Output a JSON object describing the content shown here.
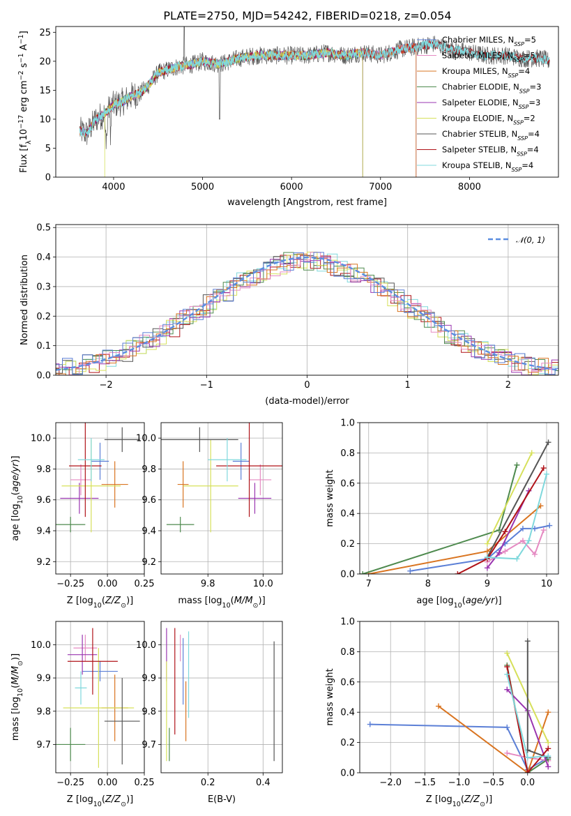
{
  "title": "PLATE=2750, MJD=54242, FIBERID=0218, z=0.054",
  "colors": {
    "Chabrier MILES": "#5b7fd6",
    "Salpeter MILES": "#e58ac2",
    "Kroupa MILES": "#d97420",
    "Chabrier ELODIE": "#4e8a4e",
    "Salpeter ELODIE": "#9a35b0",
    "Kroupa ELODIE": "#d6e05a",
    "Chabrier STELIB": "#555555",
    "Salpeter STELIB": "#b01218",
    "Kroupa STELIB": "#7fd8dc"
  },
  "chart_data": [
    {
      "id": "spectrum",
      "type": "line",
      "xlabel": "wavelength [Angstrom, rest frame]",
      "ylabel": "Flux [f_λ10^-17 erg cm^-2 s^-1 A^-1]",
      "xlim": [
        3350,
        9000
      ],
      "ylim": [
        0,
        26
      ],
      "xticks": [
        4000,
        5000,
        6000,
        7000,
        8000
      ],
      "yticks": [
        0,
        5,
        10,
        15,
        20,
        25
      ],
      "legend_position": "right",
      "legend": [
        {
          "name": "Chabrier MILES",
          "label": "Chabrier MILES, N",
          "sub": "SSP",
          "suffix": "=5"
        },
        {
          "name": "Salpeter MILES",
          "label": "Salpeter MILES, N",
          "sub": "SSP",
          "suffix": "=5"
        },
        {
          "name": "Kroupa MILES",
          "label": "Kroupa MILES, N",
          "sub": "SSP",
          "suffix": "=4"
        },
        {
          "name": "Chabrier ELODIE",
          "label": "Chabrier ELODIE, N",
          "sub": "SSP",
          "suffix": "=3"
        },
        {
          "name": "Salpeter ELODIE",
          "label": "Salpeter ELODIE, N",
          "sub": "SSP",
          "suffix": "=3"
        },
        {
          "name": "Kroupa ELODIE",
          "label": "Kroupa ELODIE, N",
          "sub": "SSP",
          "suffix": "=2"
        },
        {
          "name": "Chabrier STELIB",
          "label": "Chabrier STELIB, N",
          "sub": "SSP",
          "suffix": "=4"
        },
        {
          "name": "Salpeter STELIB",
          "label": "Salpeter STELIB, N",
          "sub": "SSP",
          "suffix": "=4"
        },
        {
          "name": "Kroupa STELIB",
          "label": "Kroupa STELIB, N",
          "sub": "SSP",
          "suffix": "=4"
        }
      ],
      "spectrum_keypoints": [
        [
          3620,
          8
        ],
        [
          3700,
          7.5
        ],
        [
          3800,
          10
        ],
        [
          3900,
          11
        ],
        [
          4000,
          12.5
        ],
        [
          4100,
          13
        ],
        [
          4200,
          14
        ],
        [
          4300,
          14.5
        ],
        [
          4400,
          16
        ],
        [
          4500,
          18
        ],
        [
          4700,
          19
        ],
        [
          4900,
          19.5
        ],
        [
          5000,
          20
        ],
        [
          5200,
          19.5
        ],
        [
          5400,
          20.5
        ],
        [
          5600,
          21
        ],
        [
          5800,
          21
        ],
        [
          6000,
          21
        ],
        [
          6200,
          21
        ],
        [
          6400,
          21.5
        ],
        [
          6600,
          21
        ],
        [
          6800,
          21.5
        ],
        [
          7000,
          21
        ],
        [
          7200,
          22
        ],
        [
          7400,
          22.5
        ],
        [
          7600,
          23
        ],
        [
          7800,
          22
        ],
        [
          8000,
          21.5
        ],
        [
          8200,
          21
        ],
        [
          8400,
          21
        ],
        [
          8600,
          20.5
        ],
        [
          8800,
          20.5
        ],
        [
          8900,
          20
        ]
      ]
    },
    {
      "id": "residuals",
      "type": "histogram",
      "xlabel": "(data-model)/error",
      "ylabel": "Normed distribution",
      "xlim": [
        -2.5,
        2.5
      ],
      "ylim": [
        0,
        0.51
      ],
      "xticks": [
        -2,
        -1,
        0,
        1,
        2
      ],
      "yticks": [
        0.0,
        0.1,
        0.2,
        0.3,
        0.4,
        0.5
      ],
      "grid": true,
      "legend_position": "top-right",
      "reference_curve": {
        "name": "N(0,1)",
        "label": "𝒩(0, 1)",
        "mean": 0,
        "sigma": 1
      }
    },
    {
      "id": "age_vs_Z",
      "type": "errorbar",
      "xlabel": "Z [log10(Z/Z⊙)]",
      "ylabel": "age [log10(age/yr)]",
      "xlim": [
        -0.35,
        0.25
      ],
      "ylim": [
        9.12,
        10.1
      ],
      "xticks": [
        -0.25,
        0.0,
        0.25
      ],
      "yticks": [
        9.2,
        9.4,
        9.6,
        9.8,
        10.0
      ],
      "grid": true,
      "points": [
        {
          "series": "Chabrier MILES",
          "x": -0.05,
          "xerr": 0.06,
          "y": 9.85,
          "yerr": 0.12
        },
        {
          "series": "Salpeter MILES",
          "x": -0.18,
          "xerr": 0.07,
          "y": 9.73,
          "yerr": 0.1
        },
        {
          "series": "Kroupa MILES",
          "x": 0.05,
          "xerr": 0.09,
          "y": 9.7,
          "yerr": 0.15
        },
        {
          "series": "Chabrier ELODIE",
          "x": -0.25,
          "xerr": 0.1,
          "y": 9.44,
          "yerr": 0.05
        },
        {
          "series": "Salpeter ELODIE",
          "x": -0.19,
          "xerr": 0.13,
          "y": 9.61,
          "yerr": 0.1
        },
        {
          "series": "Kroupa ELODIE",
          "x": -0.11,
          "xerr": 0.2,
          "y": 9.69,
          "yerr": 0.3
        },
        {
          "series": "Chabrier STELIB",
          "x": 0.1,
          "xerr": 0.12,
          "y": 9.99,
          "yerr": 0.08
        },
        {
          "series": "Salpeter STELIB",
          "x": -0.15,
          "xerr": 0.11,
          "y": 9.82,
          "yerr": 0.33
        },
        {
          "series": "Kroupa STELIB",
          "x": -0.11,
          "xerr": 0.09,
          "y": 9.86,
          "yerr": 0.14
        }
      ]
    },
    {
      "id": "age_vs_mass",
      "type": "errorbar",
      "xlabel": "mass [log10(M/M⊙)]",
      "ylabel": "",
      "xlim": [
        9.63,
        10.07
      ],
      "ylim": [
        9.12,
        10.1
      ],
      "xticks": [
        9.8,
        10.0
      ],
      "yticks": [
        9.2,
        9.4,
        9.6,
        9.8,
        10.0
      ],
      "grid": true,
      "points": [
        {
          "series": "Chabrier MILES",
          "x": 9.92,
          "xerr": 0.03,
          "y": 9.85,
          "yerr": 0.12
        },
        {
          "series": "Salpeter MILES",
          "x": 9.99,
          "xerr": 0.04,
          "y": 9.73,
          "yerr": 0.1
        },
        {
          "series": "Kroupa MILES",
          "x": 9.71,
          "xerr": 0.02,
          "y": 9.7,
          "yerr": 0.15
        },
        {
          "series": "Chabrier ELODIE",
          "x": 9.7,
          "xerr": 0.05,
          "y": 9.44,
          "yerr": 0.05
        },
        {
          "series": "Salpeter ELODIE",
          "x": 9.97,
          "xerr": 0.06,
          "y": 9.61,
          "yerr": 0.1
        },
        {
          "series": "Kroupa ELODIE",
          "x": 9.81,
          "xerr": 0.1,
          "y": 9.69,
          "yerr": 0.3
        },
        {
          "series": "Chabrier STELIB",
          "x": 9.77,
          "xerr": 0.14,
          "y": 9.99,
          "yerr": 0.08
        },
        {
          "series": "Salpeter STELIB",
          "x": 9.95,
          "xerr": 0.12,
          "y": 9.82,
          "yerr": 0.33
        },
        {
          "series": "Kroupa STELIB",
          "x": 9.87,
          "xerr": 0.07,
          "y": 9.86,
          "yerr": 0.14
        }
      ]
    },
    {
      "id": "weight_vs_age",
      "type": "line",
      "xlabel": "age [log10(age/yr)]",
      "ylabel": "mass weight",
      "xlim": [
        6.85,
        10.2
      ],
      "ylim": [
        0,
        1.0
      ],
      "xticks": [
        7,
        8,
        9,
        10
      ],
      "yticks": [
        0.0,
        0.2,
        0.4,
        0.6,
        0.8,
        1.0
      ],
      "grid": true,
      "series": [
        {
          "name": "Chabrier MILES",
          "points": [
            [
              7.7,
              0.02
            ],
            [
              9.0,
              0.1
            ],
            [
              9.3,
              0.2
            ],
            [
              9.6,
              0.3
            ],
            [
              9.8,
              0.3
            ],
            [
              10.05,
              0.32
            ]
          ]
        },
        {
          "name": "Salpeter MILES",
          "points": [
            [
              9.0,
              0.08
            ],
            [
              9.3,
              0.15
            ],
            [
              9.6,
              0.22
            ],
            [
              9.8,
              0.13
            ],
            [
              9.95,
              0.29
            ]
          ]
        },
        {
          "name": "Kroupa MILES",
          "points": [
            [
              7.0,
              0.0
            ],
            [
              9.0,
              0.15
            ],
            [
              9.9,
              0.45
            ]
          ]
        },
        {
          "name": "Chabrier ELODIE",
          "points": [
            [
              6.9,
              0.0
            ],
            [
              9.2,
              0.29
            ],
            [
              9.5,
              0.72
            ]
          ]
        },
        {
          "name": "Salpeter ELODIE",
          "points": [
            [
              9.0,
              0.04
            ],
            [
              9.2,
              0.14
            ],
            [
              9.7,
              0.55
            ]
          ]
        },
        {
          "name": "Kroupa ELODIE",
          "points": [
            [
              9.0,
              0.2
            ],
            [
              9.75,
              0.8
            ]
          ]
        },
        {
          "name": "Chabrier STELIB",
          "points": [
            [
              9.0,
              0.11
            ],
            [
              10.03,
              0.87
            ]
          ]
        },
        {
          "name": "Salpeter STELIB",
          "points": [
            [
              8.5,
              0.0
            ],
            [
              9.0,
              0.1
            ],
            [
              9.3,
              0.28
            ],
            [
              9.95,
              0.7
            ]
          ]
        },
        {
          "name": "Kroupa STELIB",
          "points": [
            [
              9.0,
              0.11
            ],
            [
              9.5,
              0.1
            ],
            [
              9.7,
              0.22
            ],
            [
              10.0,
              0.66
            ]
          ]
        }
      ]
    },
    {
      "id": "mass_vs_Z",
      "type": "errorbar",
      "xlabel": "Z [log10(Z/Z⊙)]",
      "ylabel": "mass [log10(M/M⊙)]",
      "xlim": [
        -0.35,
        0.25
      ],
      "ylim": [
        9.615,
        10.07
      ],
      "xticks": [
        -0.25,
        0.0,
        0.25
      ],
      "yticks": [
        9.7,
        9.8,
        9.9,
        10.0
      ],
      "grid": true,
      "points": [
        {
          "series": "Chabrier MILES",
          "x": -0.05,
          "xerr": 0.12,
          "y": 9.92,
          "yerr": 0.03
        },
        {
          "series": "Salpeter MILES",
          "x": -0.15,
          "xerr": 0.08,
          "y": 9.99,
          "yerr": 0.04
        },
        {
          "series": "Kroupa MILES",
          "x": 0.05,
          "xerr": 0.09,
          "y": 9.81,
          "yerr": 0.1
        },
        {
          "series": "Chabrier ELODIE",
          "x": -0.25,
          "xerr": 0.1,
          "y": 9.7,
          "yerr": 0.05
        },
        {
          "series": "Salpeter ELODIE",
          "x": -0.17,
          "xerr": 0.1,
          "y": 9.97,
          "yerr": 0.06
        },
        {
          "series": "Kroupa ELODIE",
          "x": -0.06,
          "xerr": 0.24,
          "y": 9.81,
          "yerr": 0.18
        },
        {
          "series": "Chabrier STELIB",
          "x": 0.1,
          "xerr": 0.12,
          "y": 9.77,
          "yerr": 0.13
        },
        {
          "series": "Salpeter STELIB",
          "x": -0.1,
          "xerr": 0.17,
          "y": 9.95,
          "yerr": 0.1
        },
        {
          "series": "Kroupa STELIB",
          "x": -0.18,
          "xerr": 0.04,
          "y": 9.87,
          "yerr": 0.05
        }
      ]
    },
    {
      "id": "mass_vs_ebv",
      "type": "errorbar",
      "xlabel": "E(B-V)",
      "ylabel": "",
      "xlim": [
        0.03,
        0.47
      ],
      "ylim": [
        9.615,
        10.07
      ],
      "xticks": [
        0.2,
        0.4
      ],
      "yticks": [
        9.7,
        9.8,
        9.9,
        10.0
      ],
      "grid": true,
      "points": [
        {
          "series": "Chabrier MILES",
          "x": 0.11,
          "xerr": 0.0,
          "y": 9.92,
          "yerr": 0.1
        },
        {
          "series": "Salpeter MILES",
          "x": 0.1,
          "xerr": 0.0,
          "y": 9.99,
          "yerr": 0.04
        },
        {
          "series": "Kroupa MILES",
          "x": 0.12,
          "xerr": 0.0,
          "y": 9.8,
          "yerr": 0.09
        },
        {
          "series": "Chabrier ELODIE",
          "x": 0.06,
          "xerr": 0.0,
          "y": 9.7,
          "yerr": 0.05
        },
        {
          "series": "Salpeter ELODIE",
          "x": 0.05,
          "xerr": 0.0,
          "y": 9.97,
          "yerr": 0.08
        },
        {
          "series": "Kroupa ELODIE",
          "x": 0.05,
          "xerr": 0.0,
          "y": 9.8,
          "yerr": 0.15
        },
        {
          "series": "Chabrier STELIB",
          "x": 0.44,
          "xerr": 0.0,
          "y": 9.83,
          "yerr": 0.18
        },
        {
          "series": "Salpeter STELIB",
          "x": 0.08,
          "xerr": 0.0,
          "y": 9.89,
          "yerr": 0.16
        },
        {
          "series": "Kroupa STELIB",
          "x": 0.13,
          "xerr": 0.0,
          "y": 9.91,
          "yerr": 0.13
        }
      ]
    },
    {
      "id": "weight_vs_Z",
      "type": "line",
      "xlabel": "Z [log10(Z/Z⊙)]",
      "ylabel": "mass weight",
      "xlim": [
        -2.45,
        0.45
      ],
      "ylim": [
        0,
        1.0
      ],
      "xticks": [
        -2.0,
        -1.5,
        -1.0,
        -0.5,
        0.0
      ],
      "yticks": [
        0.0,
        0.2,
        0.4,
        0.6,
        0.8,
        1.0
      ],
      "grid": true,
      "series": [
        {
          "name": "Chabrier MILES",
          "points": [
            [
              -2.3,
              0.32
            ],
            [
              -0.3,
              0.3
            ],
            [
              0.0,
              0.02
            ],
            [
              0.3,
              0.1
            ]
          ]
        },
        {
          "name": "Salpeter MILES",
          "points": [
            [
              -0.3,
              0.13
            ],
            [
              0.0,
              0.1
            ],
            [
              0.3,
              0.08
            ]
          ]
        },
        {
          "name": "Kroupa MILES",
          "points": [
            [
              -1.3,
              0.44
            ],
            [
              0.0,
              0.0
            ],
            [
              0.3,
              0.4
            ]
          ]
        },
        {
          "name": "Chabrier ELODIE",
          "points": [
            [
              -0.3,
              0.71
            ],
            [
              0.0,
              0.0
            ],
            [
              0.3,
              0.09
            ]
          ]
        },
        {
          "name": "Salpeter ELODIE",
          "points": [
            [
              -0.3,
              0.55
            ],
            [
              0.0,
              0.41
            ],
            [
              0.3,
              0.04
            ]
          ]
        },
        {
          "name": "Kroupa ELODIE",
          "points": [
            [
              -0.3,
              0.79
            ],
            [
              0.3,
              0.2
            ]
          ]
        },
        {
          "name": "Chabrier STELIB",
          "points": [
            [
              0.0,
              0.87
            ],
            [
              0.0,
              0.15
            ],
            [
              0.3,
              0.1
            ]
          ]
        },
        {
          "name": "Salpeter STELIB",
          "points": [
            [
              -0.3,
              0.7
            ],
            [
              0.0,
              0.0
            ],
            [
              0.3,
              0.16
            ]
          ]
        },
        {
          "name": "Kroupa STELIB",
          "points": [
            [
              -0.3,
              0.65
            ],
            [
              0.0,
              0.1
            ],
            [
              0.3,
              0.11
            ]
          ]
        }
      ]
    }
  ]
}
